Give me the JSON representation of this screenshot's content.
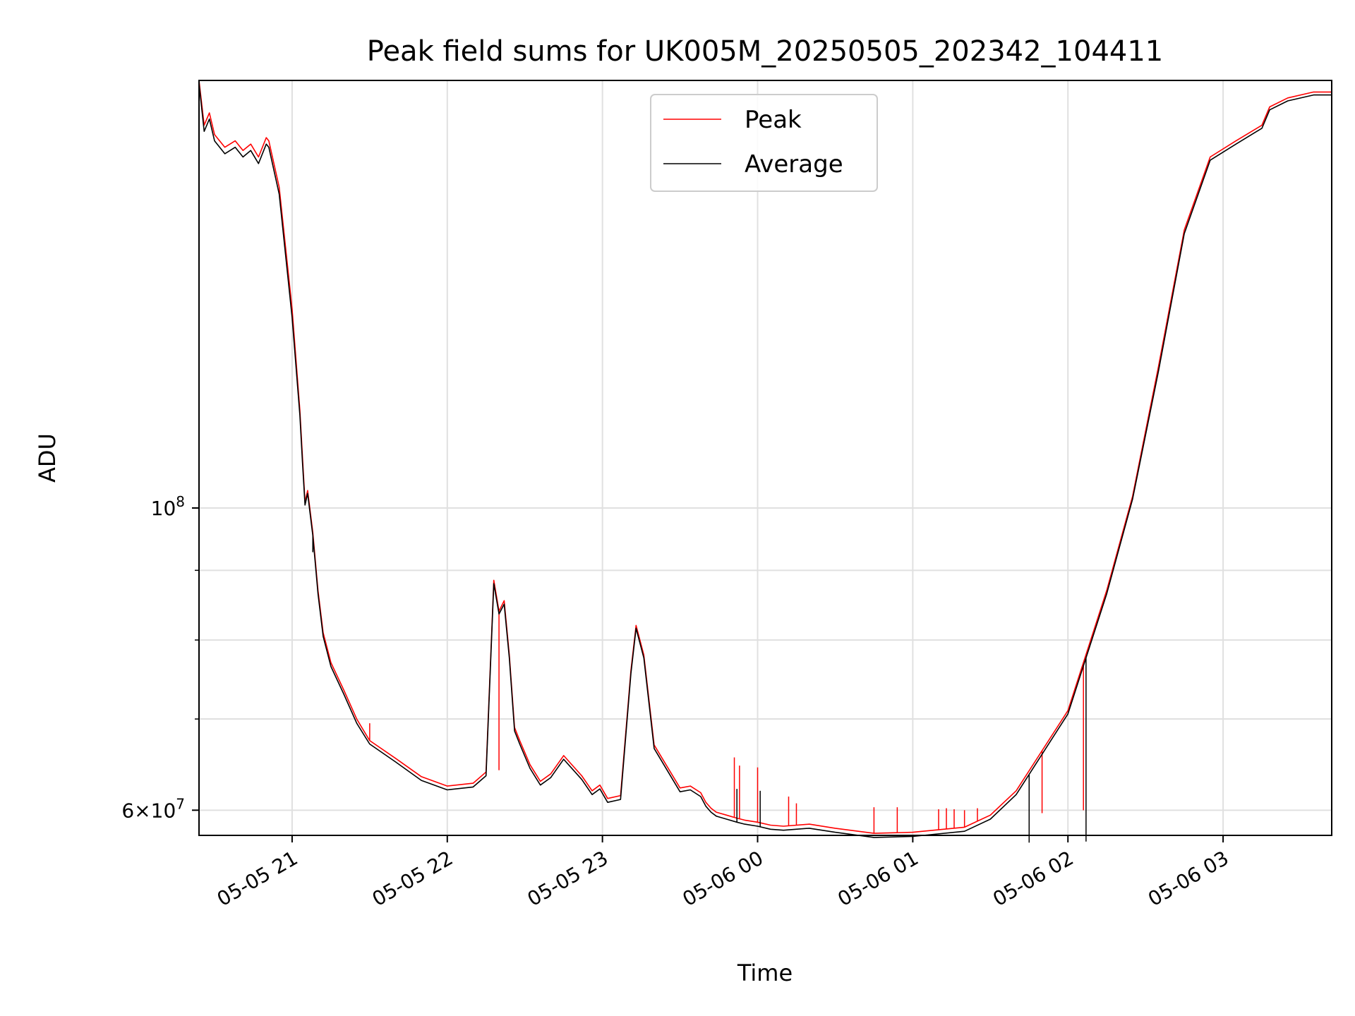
{
  "chart_data": {
    "type": "line",
    "title": "Peak field sums for UK005M_20250505_202342_104411",
    "xlabel": "Time",
    "ylabel": "ADU",
    "yscale": "log",
    "grid": true,
    "legend_position": "top-center",
    "xlim": [
      "2025-05-05 20:24",
      "2025-05-06 03:42"
    ],
    "ylim": [
      57500000,
      206000000
    ],
    "x_ticks": [
      {
        "value": "2025-05-05 21:00",
        "label": "05-05 21"
      },
      {
        "value": "2025-05-05 22:00",
        "label": "05-05 22"
      },
      {
        "value": "2025-05-05 23:00",
        "label": "05-05 23"
      },
      {
        "value": "2025-05-06 00:00",
        "label": "05-06 00"
      },
      {
        "value": "2025-05-06 01:00",
        "label": "05-06 01"
      },
      {
        "value": "2025-05-06 02:00",
        "label": "05-06 02"
      },
      {
        "value": "2025-05-06 03:00",
        "label": "05-06 03"
      }
    ],
    "y_ticks_major": [
      {
        "value": 60000000,
        "mant": "6",
        "base": "10",
        "exp": "7"
      },
      {
        "value": 100000000,
        "mant": "",
        "base": "10",
        "exp": "8"
      }
    ],
    "y_ticks_minor": [
      70000000,
      80000000,
      90000000
    ],
    "series": [
      {
        "name": "Peak",
        "color": "#ff0000",
        "x": [
          "2025-05-05 20:24",
          "2025-05-05 20:26",
          "2025-05-05 20:28",
          "2025-05-05 20:30",
          "2025-05-05 20:34",
          "2025-05-05 20:38",
          "2025-05-05 20:41",
          "2025-05-05 20:44",
          "2025-05-05 20:47",
          "2025-05-05 20:50",
          "2025-05-05 20:51",
          "2025-05-05 20:55",
          "2025-05-05 20:58",
          "2025-05-05 21:00",
          "2025-05-05 21:03",
          "2025-05-05 21:04",
          "2025-05-05 21:05",
          "2025-05-05 21:06",
          "2025-05-05 21:08",
          "2025-05-05 21:10",
          "2025-05-05 21:12",
          "2025-05-05 21:15",
          "2025-05-05 21:20",
          "2025-05-05 21:25",
          "2025-05-05 21:30",
          "2025-05-05 21:40",
          "2025-05-05 21:50",
          "2025-05-05 22:00",
          "2025-05-05 22:10",
          "2025-05-05 22:15",
          "2025-05-05 22:18",
          "2025-05-05 22:20",
          "2025-05-05 22:22",
          "2025-05-05 22:24",
          "2025-05-05 22:26",
          "2025-05-05 22:28",
          "2025-05-05 22:32",
          "2025-05-05 22:36",
          "2025-05-05 22:40",
          "2025-05-05 22:45",
          "2025-05-05 22:52",
          "2025-05-05 22:56",
          "2025-05-05 22:59",
          "2025-05-05 23:02",
          "2025-05-05 23:07",
          "2025-05-05 23:11",
          "2025-05-05 23:13",
          "2025-05-05 23:16",
          "2025-05-05 23:20",
          "2025-05-05 23:30",
          "2025-05-05 23:34",
          "2025-05-05 23:38",
          "2025-05-05 23:40",
          "2025-05-05 23:42",
          "2025-05-05 23:44",
          "2025-05-05 23:48",
          "2025-05-05 23:52",
          "2025-05-05 23:55",
          "2025-05-06 00:00",
          "2025-05-06 00:05",
          "2025-05-06 00:10",
          "2025-05-06 00:20",
          "2025-05-06 00:30",
          "2025-05-06 00:45",
          "2025-05-06 01:00",
          "2025-05-06 01:20",
          "2025-05-06 01:30",
          "2025-05-06 01:40",
          "2025-05-06 02:00",
          "2025-05-06 02:15",
          "2025-05-06 02:25",
          "2025-05-06 02:35",
          "2025-05-06 02:45",
          "2025-05-06 02:55",
          "2025-05-06 03:05",
          "2025-05-06 03:15",
          "2025-05-06 03:18",
          "2025-05-06 03:25",
          "2025-05-06 03:35",
          "2025-05-06 03:42"
        ],
        "y": [
          206000000,
          191000000,
          195000000,
          188000000,
          184000000,
          186000000,
          183000000,
          185000000,
          181000000,
          187000000,
          186000000,
          172000000,
          152000000,
          140000000,
          118000000,
          109000000,
          101000000,
          103000000,
          96000000,
          87000000,
          81000000,
          77000000,
          73500000,
          70000000,
          67500000,
          65500000,
          63500000,
          62500000,
          62800000,
          64000000,
          88500000,
          84000000,
          85500000,
          78000000,
          69000000,
          67500000,
          64800000,
          63000000,
          63800000,
          65800000,
          63600000,
          62000000,
          62600000,
          61200000,
          61500000,
          76000000,
          82000000,
          78000000,
          67000000,
          62300000,
          62500000,
          61800000,
          60800000,
          60200000,
          59800000,
          59500000,
          59200000,
          59000000,
          58800000,
          58500000,
          58400000,
          58600000,
          58200000,
          57700000,
          57800000,
          58300000,
          59500000,
          62000000,
          71000000,
          87000000,
          102000000,
          127000000,
          160000000,
          181000000,
          186000000,
          191000000,
          197000000,
          200000000,
          202000000,
          202000000
        ],
        "spikes": [
          {
            "x": "2025-05-05 21:30",
            "y": 69500000
          },
          {
            "x": "2025-05-05 22:20",
            "y": 64200000
          },
          {
            "x": "2025-05-05 23:51",
            "y": 65600000
          },
          {
            "x": "2025-05-05 23:53",
            "y": 64700000
          },
          {
            "x": "2025-05-06 00:00",
            "y": 64500000
          },
          {
            "x": "2025-05-06 00:12",
            "y": 61400000
          },
          {
            "x": "2025-05-06 00:15",
            "y": 60700000
          },
          {
            "x": "2025-05-06 00:45",
            "y": 60300000
          },
          {
            "x": "2025-05-06 00:54",
            "y": 60300000
          },
          {
            "x": "2025-05-06 01:10",
            "y": 60100000
          },
          {
            "x": "2025-05-06 01:13",
            "y": 60200000
          },
          {
            "x": "2025-05-06 01:16",
            "y": 60100000
          },
          {
            "x": "2025-05-06 01:20",
            "y": 60000000
          },
          {
            "x": "2025-05-06 01:25",
            "y": 60200000
          },
          {
            "x": "2025-05-06 01:50",
            "y": 59700000
          },
          {
            "x": "2025-05-06 02:06",
            "y": 60000000
          }
        ]
      },
      {
        "name": "Average",
        "color": "#000000",
        "x": [
          "2025-05-05 20:24",
          "2025-05-05 20:26",
          "2025-05-05 20:28",
          "2025-05-05 20:30",
          "2025-05-05 20:34",
          "2025-05-05 20:38",
          "2025-05-05 20:41",
          "2025-05-05 20:44",
          "2025-05-05 20:47",
          "2025-05-05 20:50",
          "2025-05-05 20:51",
          "2025-05-05 20:55",
          "2025-05-05 20:58",
          "2025-05-05 21:00",
          "2025-05-05 21:03",
          "2025-05-05 21:04",
          "2025-05-05 21:05",
          "2025-05-05 21:06",
          "2025-05-05 21:08",
          "2025-05-05 21:10",
          "2025-05-05 21:12",
          "2025-05-05 21:15",
          "2025-05-05 21:20",
          "2025-05-05 21:25",
          "2025-05-05 21:30",
          "2025-05-05 21:40",
          "2025-05-05 21:50",
          "2025-05-05 22:00",
          "2025-05-05 22:10",
          "2025-05-05 22:15",
          "2025-05-05 22:18",
          "2025-05-05 22:20",
          "2025-05-05 22:22",
          "2025-05-05 22:24",
          "2025-05-05 22:26",
          "2025-05-05 22:28",
          "2025-05-05 22:32",
          "2025-05-05 22:36",
          "2025-05-05 22:40",
          "2025-05-05 22:45",
          "2025-05-05 22:52",
          "2025-05-05 22:56",
          "2025-05-05 22:59",
          "2025-05-05 23:02",
          "2025-05-05 23:07",
          "2025-05-05 23:11",
          "2025-05-05 23:13",
          "2025-05-05 23:16",
          "2025-05-05 23:20",
          "2025-05-05 23:30",
          "2025-05-05 23:34",
          "2025-05-05 23:38",
          "2025-05-05 23:40",
          "2025-05-05 23:42",
          "2025-05-05 23:44",
          "2025-05-05 23:48",
          "2025-05-05 23:52",
          "2025-05-05 23:55",
          "2025-05-06 00:00",
          "2025-05-06 00:05",
          "2025-05-06 00:10",
          "2025-05-06 00:20",
          "2025-05-06 00:30",
          "2025-05-06 00:45",
          "2025-05-06 01:00",
          "2025-05-06 01:20",
          "2025-05-06 01:30",
          "2025-05-06 01:40",
          "2025-05-06 02:00",
          "2025-05-06 02:15",
          "2025-05-06 02:25",
          "2025-05-06 02:35",
          "2025-05-06 02:45",
          "2025-05-06 02:55",
          "2025-05-06 03:05",
          "2025-05-06 03:15",
          "2025-05-06 03:18",
          "2025-05-06 03:25",
          "2025-05-06 03:35",
          "2025-05-06 03:42"
        ],
        "y": [
          205000000,
          189000000,
          193000000,
          186000000,
          182000000,
          184000000,
          181000000,
          183000000,
          179000000,
          185000000,
          184000000,
          170000000,
          150000000,
          138000000,
          117000000,
          108000000,
          100500000,
          102500000,
          95500000,
          86500000,
          80500000,
          76500000,
          73000000,
          69500000,
          67100000,
          65100000,
          63100000,
          62100000,
          62400000,
          63600000,
          88000000,
          83600000,
          85000000,
          77600000,
          68600000,
          67100000,
          64400000,
          62600000,
          63400000,
          65400000,
          63200000,
          61600000,
          62200000,
          60800000,
          61100000,
          75600000,
          81600000,
          77600000,
          66600000,
          61900000,
          62100000,
          61400000,
          60400000,
          59800000,
          59400000,
          59100000,
          58800000,
          58600000,
          58400000,
          58100000,
          58000000,
          58200000,
          57800000,
          57300000,
          57400000,
          57900000,
          59100000,
          61600000,
          70600000,
          86500000,
          101500000,
          126000000,
          159000000,
          180000000,
          185000000,
          190000000,
          196000000,
          199000000,
          201000000,
          201000000
        ],
        "spikes": [
          {
            "x": "2025-05-05 21:08",
            "y": 92800000
          },
          {
            "x": "2025-05-05 23:52",
            "y": 62200000
          },
          {
            "x": "2025-05-06 00:01",
            "y": 62000000
          },
          {
            "x": "2025-05-06 01:45",
            "y": 56800000
          },
          {
            "x": "2025-05-06 02:07",
            "y": 56900000
          }
        ]
      }
    ]
  }
}
